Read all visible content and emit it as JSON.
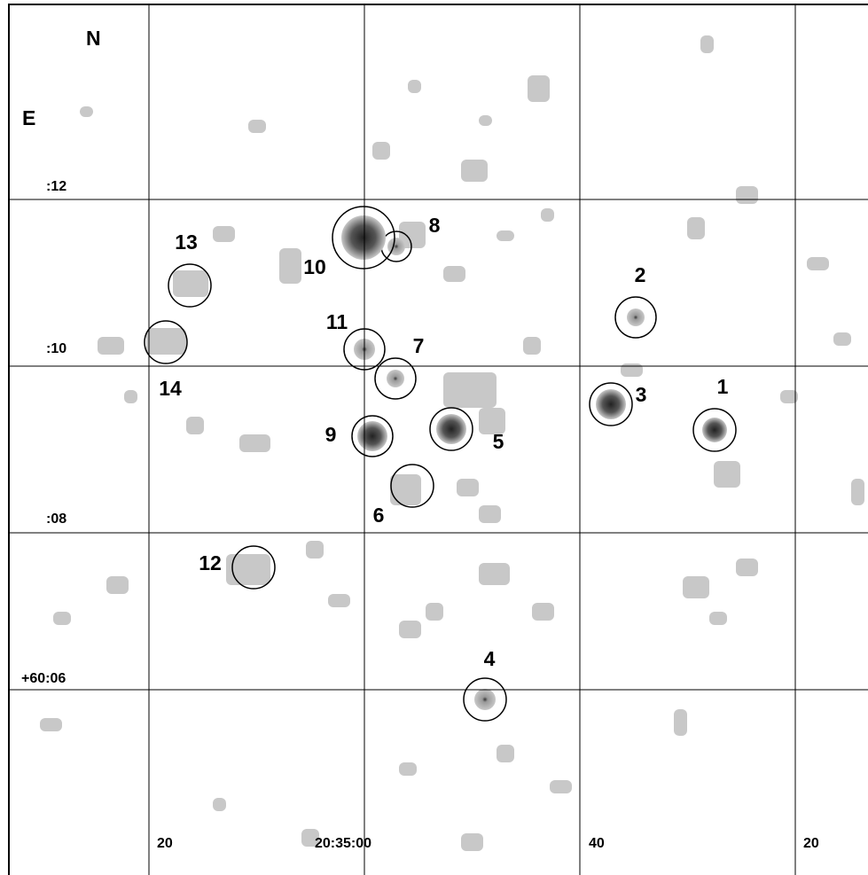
{
  "compass": {
    "north": "N",
    "east": "E"
  },
  "dec_labels": [
    ":12",
    ":10",
    ":08",
    "+60:06"
  ],
  "ra_labels": [
    "20",
    "20:35:00",
    "40",
    "20"
  ],
  "source_labels": [
    "1",
    "2",
    "3",
    "4",
    "5",
    "6",
    "7",
    "8",
    "9",
    "10",
    "11",
    "12",
    "13",
    "14"
  ]
}
